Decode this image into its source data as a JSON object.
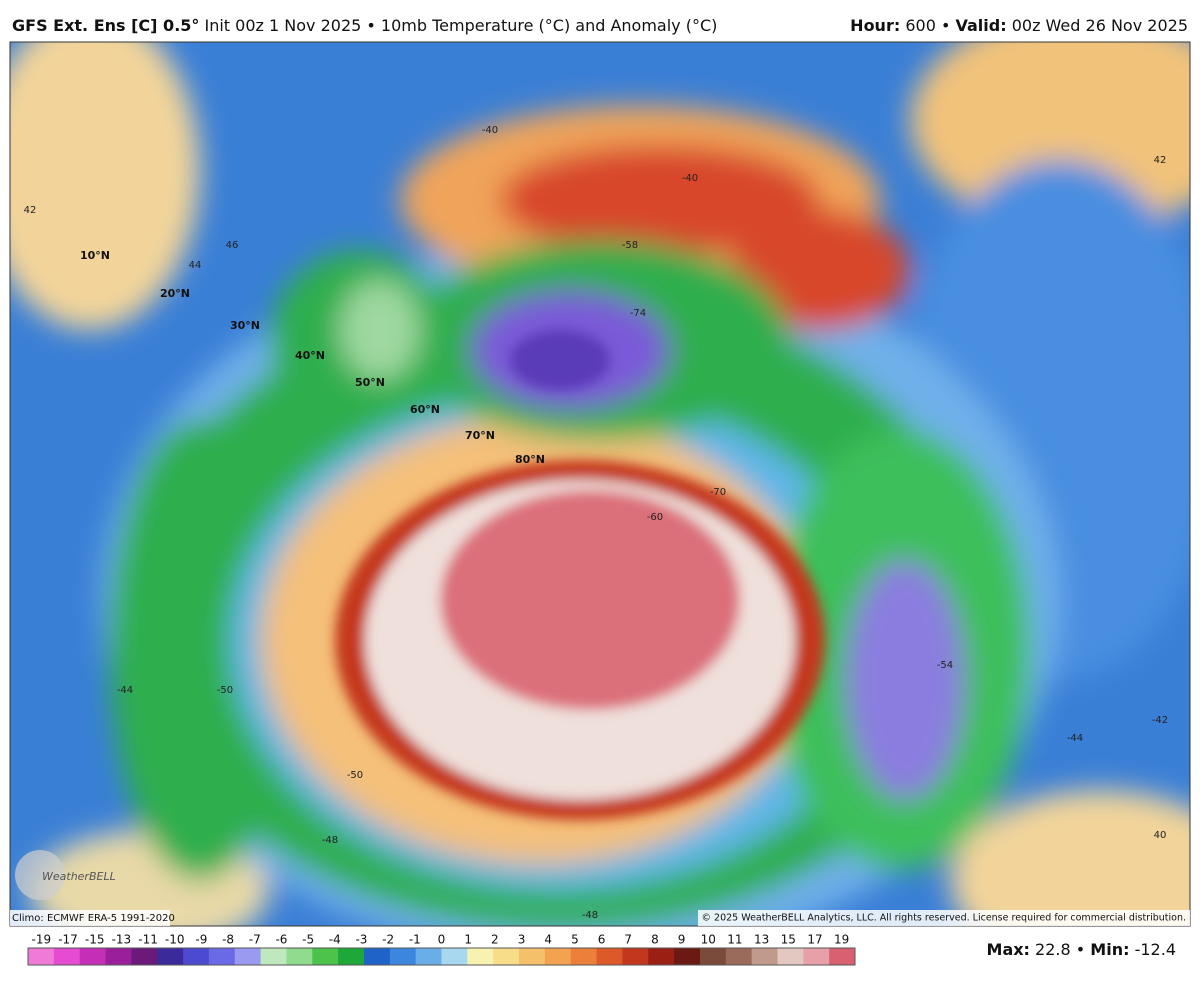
{
  "header": {
    "model": "GFS Ext. Ens [C] 0.5°",
    "description": "Init 00z 1 Nov 2025 • 10mb Temperature (°C) and Anomaly (°C)",
    "hour_label": "Hour:",
    "hour_value": "600 •",
    "valid_label": "Valid:",
    "valid_value": "00z Wed 26 Nov 2025"
  },
  "map": {
    "latitude_labels": [
      "10°N",
      "20°N",
      "30°N",
      "40°N",
      "50°N",
      "60°N",
      "70°N",
      "80°N"
    ],
    "contour_labels": [
      "42",
      "46",
      "44",
      "-50",
      "-50",
      "-48",
      "-44",
      "-70",
      "-60",
      "-54",
      "-44",
      "-48",
      "-58",
      "-74",
      "-40",
      "-40",
      "40",
      "42",
      "-42"
    ],
    "logo": "WeatherBELL",
    "climo": "Climo: ECMWF ERA-5 1991-2020",
    "copyright": "© 2025 WeatherBELL Analytics, LLC. All rights reserved. License required for commercial distribution."
  },
  "colorbar": {
    "labels": [
      "-19",
      "-17",
      "-15",
      "-13",
      "-11",
      "-10",
      "-9",
      "-8",
      "-7",
      "-6",
      "-5",
      "-4",
      "-3",
      "-2",
      "-1",
      "0",
      "1",
      "2",
      "3",
      "4",
      "5",
      "6",
      "7",
      "8",
      "9",
      "10",
      "11",
      "13",
      "15",
      "17",
      "19"
    ]
  },
  "stats": {
    "max_label": "Max:",
    "max_value": "22.8 •",
    "min_label": "Min:",
    "min_value": "-12.4"
  }
}
